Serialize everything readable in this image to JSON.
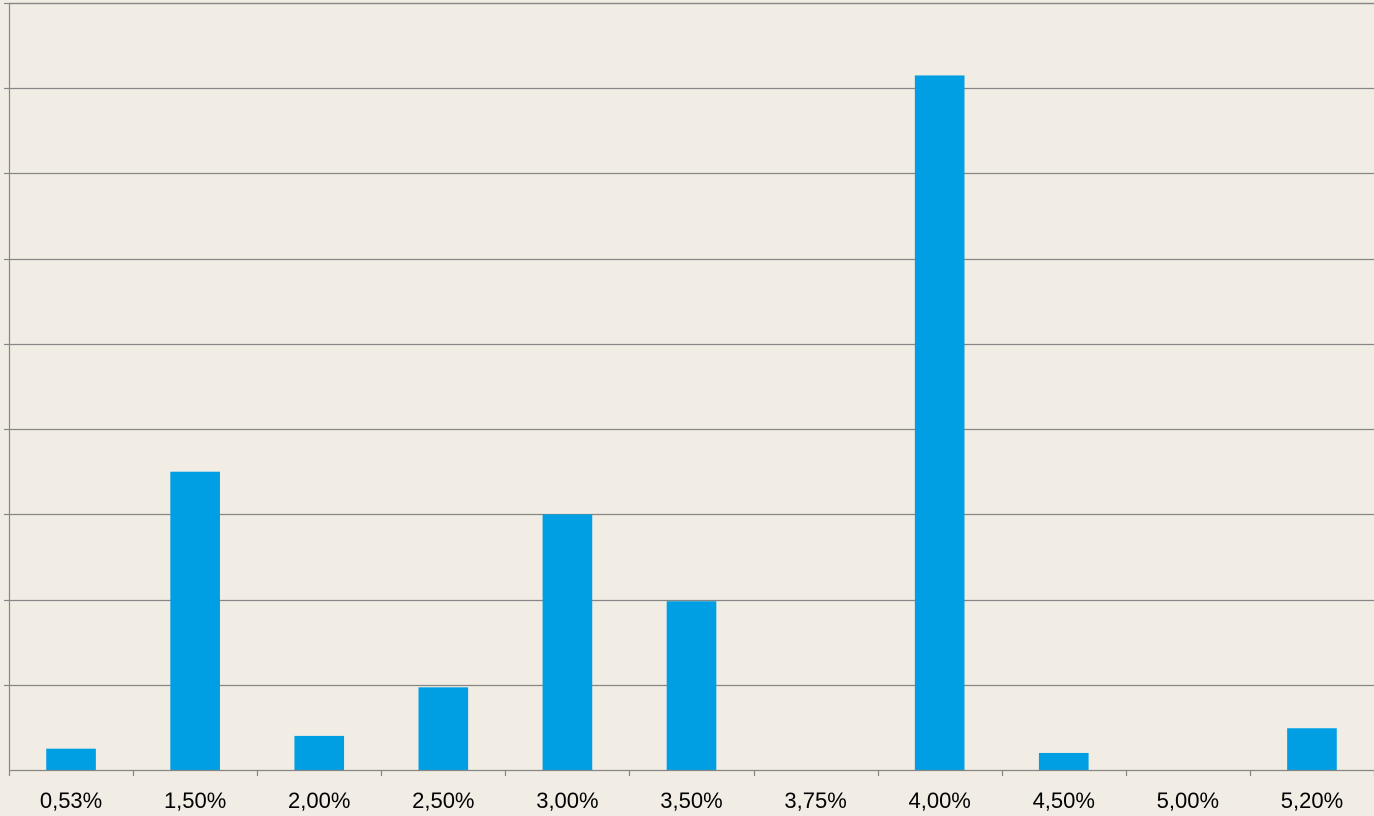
{
  "chart_data": {
    "type": "bar",
    "title": "",
    "xlabel": "",
    "ylabel": "",
    "categories": [
      "0,53%",
      "1,50%",
      "2,00%",
      "2,50%",
      "3,00%",
      "3,50%",
      "3,75%",
      "4,00%",
      "4,50%",
      "5,00%",
      "5,20%"
    ],
    "values": [
      0.25,
      3.5,
      0.4,
      0.97,
      3.0,
      1.98,
      0,
      8.15,
      0.2,
      0,
      0.49
    ],
    "ylim": [
      0,
      9
    ],
    "y_gridline_step": 1,
    "y_tick_labels_visible": false,
    "grid": true,
    "legend": "none",
    "colors": {
      "bar": "#009fe3",
      "background": "#f1ece4",
      "grid": "#868686",
      "axis": "#868686",
      "text": "#000000"
    }
  }
}
